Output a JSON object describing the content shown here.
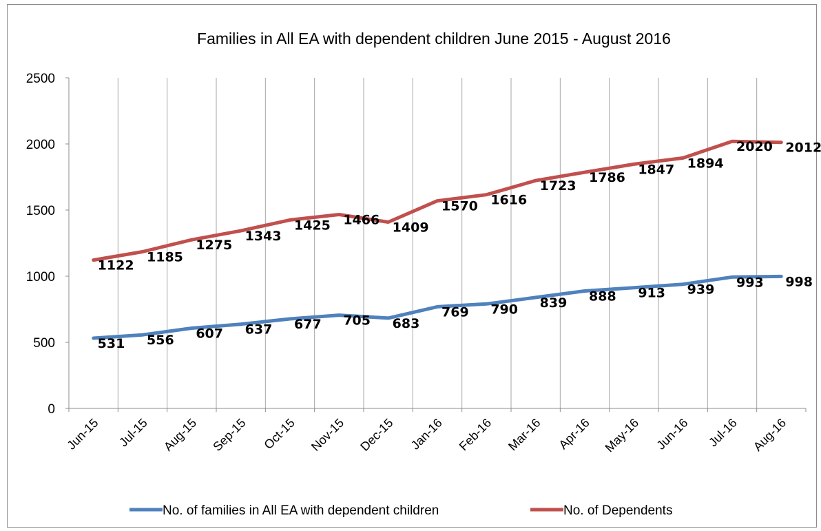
{
  "chart_data": {
    "type": "line",
    "title": "Families in All EA with dependent children June 2015 - August 2016",
    "xlabel": "",
    "ylabel": "",
    "categories": [
      "Jun-15",
      "Jul-15",
      "Aug-15",
      "Sep-15",
      "Oct-15",
      "Nov-15",
      "Dec-15",
      "Jan-16",
      "Feb-16",
      "Mar-16",
      "Apr-16",
      "May-16",
      "Jun-16",
      "Jul-16",
      "Aug-16"
    ],
    "ylim": [
      0,
      2500
    ],
    "yticks": [
      "0",
      "500",
      "1000",
      "1500",
      "2000",
      "2500"
    ],
    "grid": "vertical",
    "legend_position": "bottom",
    "series": [
      {
        "name": "No. of families in All EA with dependent children",
        "color": "#4f81bd",
        "values": [
          531,
          556,
          607,
          637,
          677,
          705,
          683,
          769,
          790,
          839,
          888,
          913,
          939,
          993,
          998
        ]
      },
      {
        "name": "No. of Dependents",
        "color": "#c0504d",
        "values": [
          1122,
          1185,
          1275,
          1343,
          1425,
          1466,
          1409,
          1570,
          1616,
          1723,
          1786,
          1847,
          1894,
          2020,
          2012
        ]
      }
    ]
  }
}
